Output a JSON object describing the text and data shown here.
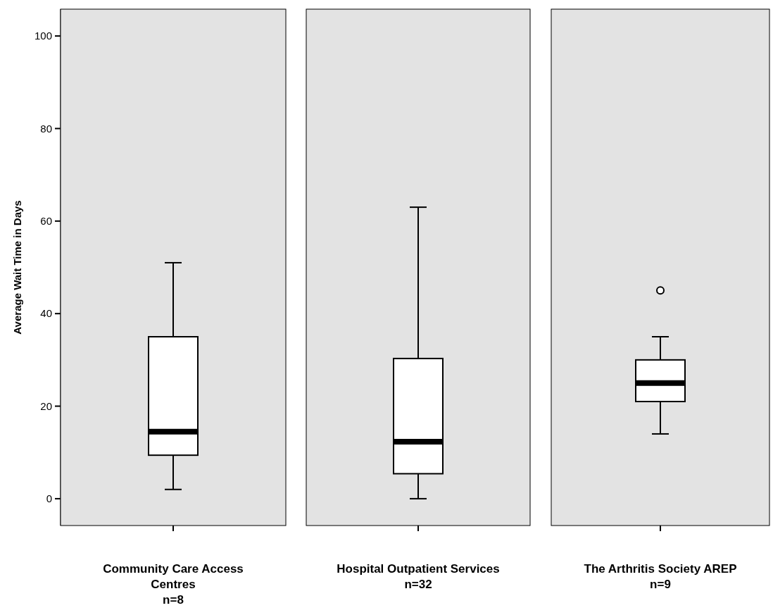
{
  "chart_data": {
    "type": "box",
    "ylabel": "Average Wait Time in Days",
    "categories": [
      "Community Care Access Centres\nn=8",
      "Hospital Outpatient Services\nn=32",
      "The Arthritis Society AREP\nn=9"
    ],
    "boxes": [
      {
        "low": 2,
        "q1": 9.4,
        "median": 14.5,
        "q3": 35,
        "high": 51
      },
      {
        "low": 0,
        "q1": 5.4,
        "median": 12.3,
        "q3": 30.3,
        "high": 63
      },
      {
        "low": 14,
        "q1": 21,
        "median": 25,
        "q3": 30,
        "high": 35,
        "outliers": [
          45
        ]
      }
    ],
    "color": "#ffffff",
    "ylim": [
      -5.8,
      105.8
    ],
    "yticks": [
      0,
      20,
      40,
      60,
      80,
      100
    ],
    "grid": false
  }
}
